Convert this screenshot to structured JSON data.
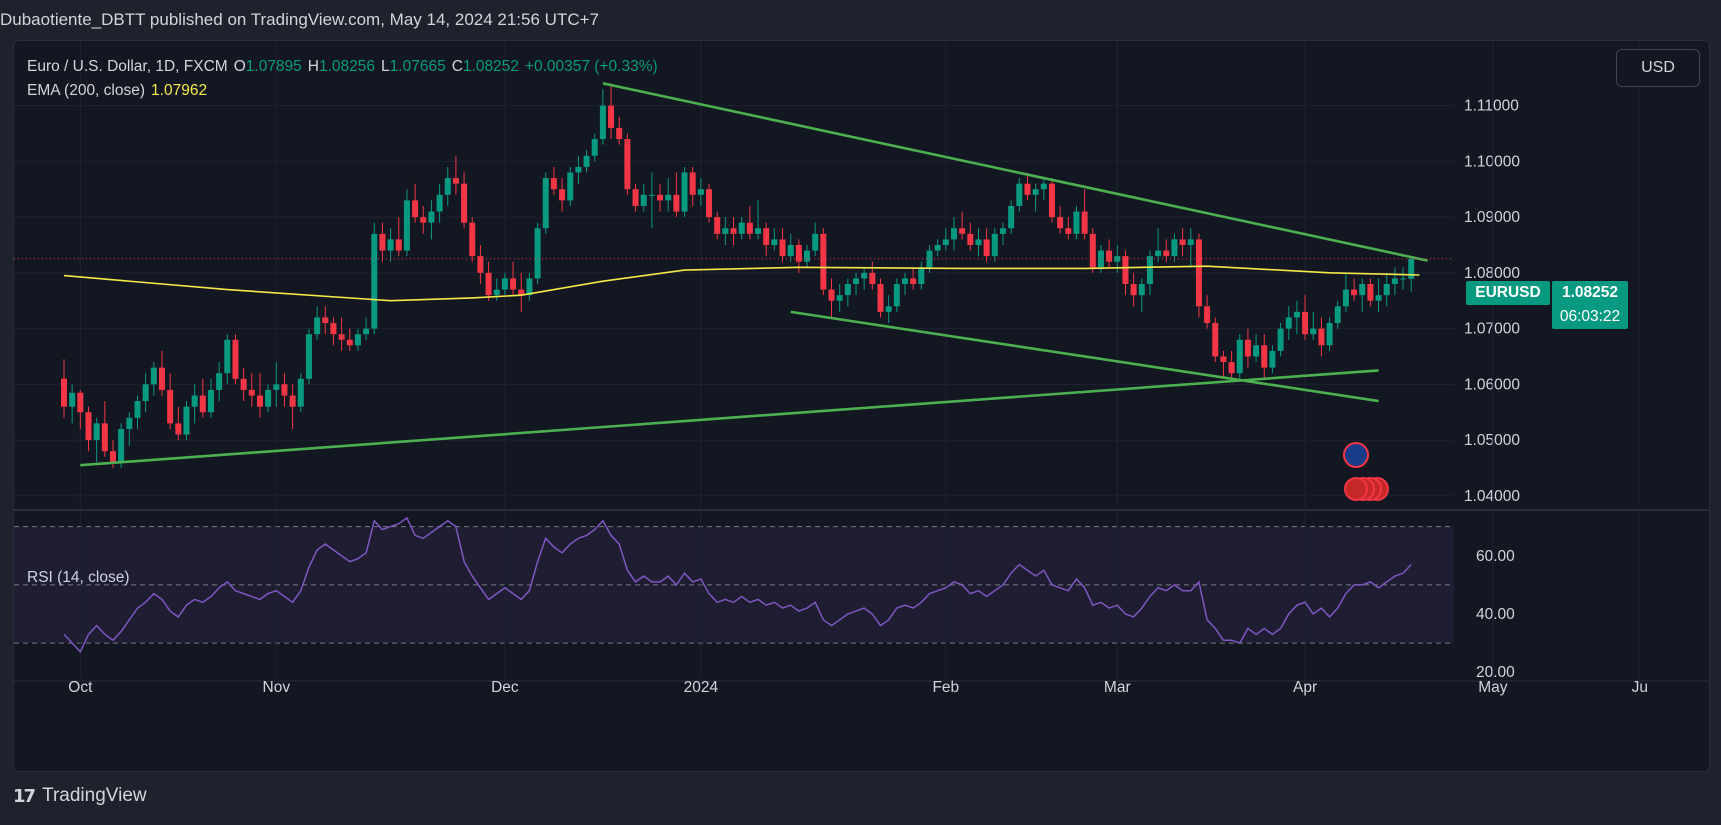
{
  "header": {
    "published_line": "Dubaotiente_DBTT published on TradingView.com, May 14, 2024 21:56 UTC+7"
  },
  "legend": {
    "instrument": "Euro / U.S. Dollar, 1D, FXCM",
    "o_label": "O",
    "o_value": "1.07895",
    "h_label": "H",
    "h_value": "1.08256",
    "l_label": "L",
    "l_value": "1.07665",
    "c_label": "C",
    "c_value": "1.08252",
    "change": "+0.00357 (+0.33%)",
    "ema_label": "EMA (200, close)",
    "ema_value": "1.07962"
  },
  "rsi_legend": "RSI (14, close)",
  "currency_button": "USD",
  "price_tag": {
    "symbol": "EURUSD",
    "price": "1.08252",
    "countdown": "06:03:22"
  },
  "footer": {
    "logo": "17",
    "brand": "TradingView"
  },
  "colors": {
    "up": "#089981",
    "down": "#f23645",
    "ema": "#f5e94a",
    "trendline": "#4caf50",
    "rsi": "#7e57c2",
    "background": "#131722"
  },
  "chart_data": {
    "type": "candlestick",
    "price_axis": {
      "ticks": [
        "1.11000",
        "1.10000",
        "1.09000",
        "1.08000",
        "1.07000",
        "1.06000",
        "1.05000",
        "1.04000"
      ],
      "tick_values": [
        1.11,
        1.1,
        1.09,
        1.08,
        1.07,
        1.06,
        1.05,
        1.04
      ],
      "ylim": [
        1.038,
        1.118
      ]
    },
    "time_axis": {
      "labels": [
        "Oct",
        "Nov",
        "Dec",
        "2024",
        "Feb",
        "Mar",
        "Apr",
        "May",
        "Ju"
      ]
    },
    "rsi_axis": {
      "ticks": [
        "60.00",
        "40.00",
        "20.00"
      ],
      "tick_values": [
        60,
        40,
        20
      ],
      "bands": [
        70,
        50,
        30
      ],
      "ylim": [
        18,
        74
      ]
    },
    "start_date": "2023-09-27",
    "candles": [
      [
        1.061,
        1.0645,
        1.054,
        1.056
      ],
      [
        1.056,
        1.06,
        1.053,
        1.0585
      ],
      [
        1.0585,
        1.059,
        1.052,
        1.055
      ],
      [
        1.055,
        1.056,
        1.048,
        1.05
      ],
      [
        1.05,
        1.054,
        1.046,
        1.053
      ],
      [
        1.053,
        1.057,
        1.047,
        1.048
      ],
      [
        1.048,
        1.05,
        1.045,
        1.046
      ],
      [
        1.046,
        1.053,
        1.045,
        1.052
      ],
      [
        1.052,
        1.055,
        1.049,
        1.054
      ],
      [
        1.054,
        1.058,
        1.052,
        1.057
      ],
      [
        1.057,
        1.062,
        1.055,
        1.06
      ],
      [
        1.06,
        1.064,
        1.058,
        1.063
      ],
      [
        1.063,
        1.066,
        1.058,
        1.059
      ],
      [
        1.059,
        1.062,
        1.052,
        1.053
      ],
      [
        1.053,
        1.056,
        1.05,
        1.051
      ],
      [
        1.051,
        1.057,
        1.05,
        1.056
      ],
      [
        1.056,
        1.06,
        1.053,
        1.058
      ],
      [
        1.058,
        1.061,
        1.054,
        1.055
      ],
      [
        1.055,
        1.061,
        1.054,
        1.059
      ],
      [
        1.059,
        1.064,
        1.057,
        1.062
      ],
      [
        1.062,
        1.069,
        1.06,
        1.068
      ],
      [
        1.068,
        1.069,
        1.06,
        1.061
      ],
      [
        1.061,
        1.063,
        1.057,
        1.059
      ],
      [
        1.059,
        1.062,
        1.056,
        1.058
      ],
      [
        1.058,
        1.062,
        1.054,
        1.056
      ],
      [
        1.056,
        1.06,
        1.055,
        1.059
      ],
      [
        1.059,
        1.064,
        1.056,
        1.06
      ],
      [
        1.06,
        1.062,
        1.056,
        1.058
      ],
      [
        1.058,
        1.06,
        1.052,
        1.056
      ],
      [
        1.056,
        1.062,
        1.055,
        1.061
      ],
      [
        1.061,
        1.07,
        1.06,
        1.069
      ],
      [
        1.069,
        1.074,
        1.068,
        1.072
      ],
      [
        1.072,
        1.074,
        1.069,
        1.071
      ],
      [
        1.071,
        1.072,
        1.067,
        1.069
      ],
      [
        1.069,
        1.072,
        1.066,
        1.068
      ],
      [
        1.068,
        1.07,
        1.066,
        1.067
      ],
      [
        1.067,
        1.07,
        1.066,
        1.069
      ],
      [
        1.069,
        1.072,
        1.068,
        1.07
      ],
      [
        1.07,
        1.089,
        1.069,
        1.087
      ],
      [
        1.087,
        1.089,
        1.082,
        1.084
      ],
      [
        1.084,
        1.088,
        1.082,
        1.086
      ],
      [
        1.086,
        1.09,
        1.083,
        1.084
      ],
      [
        1.084,
        1.095,
        1.083,
        1.093
      ],
      [
        1.093,
        1.096,
        1.089,
        1.09
      ],
      [
        1.09,
        1.092,
        1.087,
        1.089
      ],
      [
        1.089,
        1.093,
        1.086,
        1.091
      ],
      [
        1.091,
        1.096,
        1.089,
        1.094
      ],
      [
        1.094,
        1.099,
        1.092,
        1.097
      ],
      [
        1.097,
        1.101,
        1.094,
        1.096
      ],
      [
        1.096,
        1.098,
        1.088,
        1.089
      ],
      [
        1.089,
        1.09,
        1.082,
        1.083
      ],
      [
        1.083,
        1.085,
        1.078,
        1.08
      ],
      [
        1.08,
        1.082,
        1.075,
        1.076
      ],
      [
        1.076,
        1.079,
        1.075,
        1.077
      ],
      [
        1.077,
        1.08,
        1.076,
        1.079
      ],
      [
        1.079,
        1.082,
        1.076,
        1.077
      ],
      [
        1.077,
        1.08,
        1.073,
        1.076
      ],
      [
        1.076,
        1.08,
        1.075,
        1.079
      ],
      [
        1.079,
        1.089,
        1.078,
        1.088
      ],
      [
        1.088,
        1.098,
        1.087,
        1.097
      ],
      [
        1.097,
        1.099,
        1.094,
        1.095
      ],
      [
        1.095,
        1.097,
        1.091,
        1.093
      ],
      [
        1.093,
        1.099,
        1.092,
        1.098
      ],
      [
        1.098,
        1.101,
        1.096,
        1.099
      ],
      [
        1.099,
        1.102,
        1.098,
        1.101
      ],
      [
        1.101,
        1.105,
        1.1,
        1.104
      ],
      [
        1.104,
        1.113,
        1.103,
        1.11
      ],
      [
        1.11,
        1.114,
        1.104,
        1.106
      ],
      [
        1.106,
        1.108,
        1.103,
        1.104
      ],
      [
        1.104,
        1.105,
        1.094,
        1.095
      ],
      [
        1.095,
        1.096,
        1.091,
        1.092
      ],
      [
        1.092,
        1.096,
        1.091,
        1.094
      ],
      [
        1.094,
        1.098,
        1.088,
        1.094
      ],
      [
        1.094,
        1.096,
        1.091,
        1.093
      ],
      [
        1.093,
        1.097,
        1.091,
        1.094
      ],
      [
        1.094,
        1.098,
        1.09,
        1.091
      ],
      [
        1.091,
        1.099,
        1.09,
        1.098
      ],
      [
        1.098,
        1.099,
        1.092,
        1.094
      ],
      [
        1.094,
        1.097,
        1.092,
        1.095
      ],
      [
        1.095,
        1.096,
        1.089,
        1.09
      ],
      [
        1.09,
        1.091,
        1.086,
        1.087
      ],
      [
        1.087,
        1.09,
        1.085,
        1.088
      ],
      [
        1.088,
        1.09,
        1.085,
        1.087
      ],
      [
        1.087,
        1.09,
        1.086,
        1.089
      ],
      [
        1.089,
        1.092,
        1.086,
        1.087
      ],
      [
        1.087,
        1.093,
        1.086,
        1.088
      ],
      [
        1.088,
        1.089,
        1.083,
        1.085
      ],
      [
        1.085,
        1.088,
        1.084,
        1.086
      ],
      [
        1.086,
        1.088,
        1.082,
        1.083
      ],
      [
        1.083,
        1.087,
        1.082,
        1.085
      ],
      [
        1.085,
        1.086,
        1.08,
        1.082
      ],
      [
        1.082,
        1.085,
        1.081,
        1.084
      ],
      [
        1.084,
        1.089,
        1.083,
        1.087
      ],
      [
        1.087,
        1.088,
        1.076,
        1.077
      ],
      [
        1.077,
        1.079,
        1.072,
        1.075
      ],
      [
        1.075,
        1.078,
        1.073,
        1.076
      ],
      [
        1.076,
        1.079,
        1.074,
        1.078
      ],
      [
        1.078,
        1.08,
        1.076,
        1.079
      ],
      [
        1.079,
        1.081,
        1.077,
        1.08
      ],
      [
        1.08,
        1.082,
        1.077,
        1.078
      ],
      [
        1.078,
        1.079,
        1.072,
        1.073
      ],
      [
        1.073,
        1.076,
        1.071,
        1.074
      ],
      [
        1.074,
        1.079,
        1.073,
        1.078
      ],
      [
        1.078,
        1.08,
        1.076,
        1.079
      ],
      [
        1.079,
        1.081,
        1.077,
        1.078
      ],
      [
        1.078,
        1.082,
        1.077,
        1.081
      ],
      [
        1.081,
        1.085,
        1.08,
        1.084
      ],
      [
        1.084,
        1.086,
        1.083,
        1.085
      ],
      [
        1.085,
        1.088,
        1.084,
        1.086
      ],
      [
        1.086,
        1.09,
        1.084,
        1.088
      ],
      [
        1.088,
        1.091,
        1.086,
        1.087
      ],
      [
        1.087,
        1.089,
        1.084,
        1.085
      ],
      [
        1.085,
        1.088,
        1.083,
        1.086
      ],
      [
        1.086,
        1.088,
        1.082,
        1.083
      ],
      [
        1.083,
        1.088,
        1.082,
        1.087
      ],
      [
        1.087,
        1.089,
        1.085,
        1.088
      ],
      [
        1.088,
        1.093,
        1.087,
        1.092
      ],
      [
        1.092,
        1.097,
        1.091,
        1.096
      ],
      [
        1.096,
        1.098,
        1.093,
        1.094
      ],
      [
        1.094,
        1.096,
        1.091,
        1.095
      ],
      [
        1.095,
        1.097,
        1.093,
        1.096
      ],
      [
        1.096,
        1.097,
        1.089,
        1.09
      ],
      [
        1.09,
        1.092,
        1.087,
        1.088
      ],
      [
        1.088,
        1.09,
        1.086,
        1.087
      ],
      [
        1.087,
        1.092,
        1.086,
        1.091
      ],
      [
        1.091,
        1.095,
        1.086,
        1.087
      ],
      [
        1.087,
        1.088,
        1.08,
        1.081
      ],
      [
        1.081,
        1.085,
        1.08,
        1.084
      ],
      [
        1.084,
        1.086,
        1.081,
        1.082
      ],
      [
        1.082,
        1.085,
        1.08,
        1.083
      ],
      [
        1.083,
        1.084,
        1.076,
        1.078
      ],
      [
        1.078,
        1.08,
        1.074,
        1.076
      ],
      [
        1.076,
        1.079,
        1.073,
        1.078
      ],
      [
        1.078,
        1.084,
        1.076,
        1.083
      ],
      [
        1.083,
        1.088,
        1.082,
        1.084
      ],
      [
        1.084,
        1.086,
        1.082,
        1.083
      ],
      [
        1.083,
        1.087,
        1.082,
        1.086
      ],
      [
        1.086,
        1.088,
        1.083,
        1.085
      ],
      [
        1.085,
        1.088,
        1.081,
        1.086
      ],
      [
        1.086,
        1.087,
        1.072,
        1.074
      ],
      [
        1.074,
        1.076,
        1.07,
        1.071
      ],
      [
        1.071,
        1.072,
        1.064,
        1.065
      ],
      [
        1.065,
        1.066,
        1.061,
        1.064
      ],
      [
        1.064,
        1.066,
        1.061,
        1.062
      ],
      [
        1.062,
        1.069,
        1.061,
        1.068
      ],
      [
        1.068,
        1.07,
        1.063,
        1.065
      ],
      [
        1.065,
        1.069,
        1.064,
        1.067
      ],
      [
        1.067,
        1.069,
        1.061,
        1.063
      ],
      [
        1.063,
        1.067,
        1.062,
        1.066
      ],
      [
        1.066,
        1.071,
        1.065,
        1.07
      ],
      [
        1.07,
        1.074,
        1.068,
        1.072
      ],
      [
        1.072,
        1.075,
        1.069,
        1.073
      ],
      [
        1.073,
        1.076,
        1.068,
        1.069
      ],
      [
        1.069,
        1.073,
        1.068,
        1.07
      ],
      [
        1.07,
        1.072,
        1.065,
        1.067
      ],
      [
        1.067,
        1.072,
        1.066,
        1.071
      ],
      [
        1.071,
        1.075,
        1.07,
        1.074
      ],
      [
        1.074,
        1.08,
        1.073,
        1.077
      ],
      [
        1.077,
        1.079,
        1.075,
        1.076
      ],
      [
        1.076,
        1.079,
        1.073,
        1.078
      ],
      [
        1.078,
        1.079,
        1.074,
        1.075
      ],
      [
        1.075,
        1.079,
        1.073,
        1.076
      ],
      [
        1.076,
        1.08,
        1.074,
        1.078
      ],
      [
        1.078,
        1.081,
        1.076,
        1.079
      ],
      [
        1.079,
        1.081,
        1.077,
        1.079
      ],
      [
        1.07895,
        1.08256,
        1.07665,
        1.08252
      ]
    ],
    "ema": {
      "name": "EMA (200, close)",
      "points": [
        [
          0,
          1.0795
        ],
        [
          20,
          1.077
        ],
        [
          40,
          1.075
        ],
        [
          50,
          1.0755
        ],
        [
          56,
          1.076
        ],
        [
          66,
          1.0785
        ],
        [
          76,
          1.0805
        ],
        [
          90,
          1.081
        ],
        [
          110,
          1.0808
        ],
        [
          125,
          1.0808
        ],
        [
          140,
          1.0812
        ],
        [
          155,
          1.08
        ],
        [
          166,
          1.07962
        ]
      ]
    },
    "trendlines": [
      {
        "from": [
          2,
          1.0455
        ],
        "to": [
          161,
          1.0625
        ]
      },
      {
        "from": [
          66,
          1.114
        ],
        "to": [
          167,
          1.0822
        ]
      },
      {
        "from": [
          89,
          1.073
        ],
        "to": [
          161,
          1.057
        ]
      }
    ],
    "rsi": {
      "name": "RSI (14, close)",
      "values": [
        33,
        30,
        27,
        33,
        36,
        33,
        31,
        34,
        38,
        42,
        44,
        47,
        45,
        41,
        39,
        43,
        45,
        44,
        46,
        49,
        51,
        48,
        47,
        46,
        45,
        47,
        48,
        46,
        44,
        48,
        56,
        62,
        64,
        62,
        60,
        58,
        59,
        61,
        72,
        69,
        70,
        71,
        73,
        67,
        66,
        68,
        70,
        72,
        70,
        58,
        53,
        49,
        45,
        47,
        49,
        47,
        45,
        48,
        58,
        66,
        63,
        61,
        64,
        66,
        67,
        69,
        72,
        67,
        64,
        55,
        51,
        53,
        51,
        51,
        53,
        50,
        54,
        51,
        52,
        47,
        44,
        45,
        44,
        46,
        44,
        45,
        43,
        44,
        42,
        43,
        41,
        42,
        44,
        38,
        36,
        38,
        40,
        41,
        42,
        40,
        36,
        38,
        42,
        43,
        42,
        44,
        47,
        48,
        49,
        51,
        50,
        47,
        48,
        46,
        48,
        50,
        54,
        57,
        55,
        53,
        55,
        50,
        49,
        48,
        52,
        49,
        43,
        44,
        42,
        43,
        40,
        39,
        42,
        46,
        49,
        48,
        50,
        48,
        48,
        51,
        38,
        35,
        31,
        31,
        30,
        35,
        33,
        35,
        33,
        35,
        40,
        43,
        44,
        40,
        42,
        39,
        42,
        47,
        50,
        50,
        51,
        49,
        51,
        53,
        54,
        57
      ],
      "ylim": [
        18,
        74
      ]
    }
  }
}
